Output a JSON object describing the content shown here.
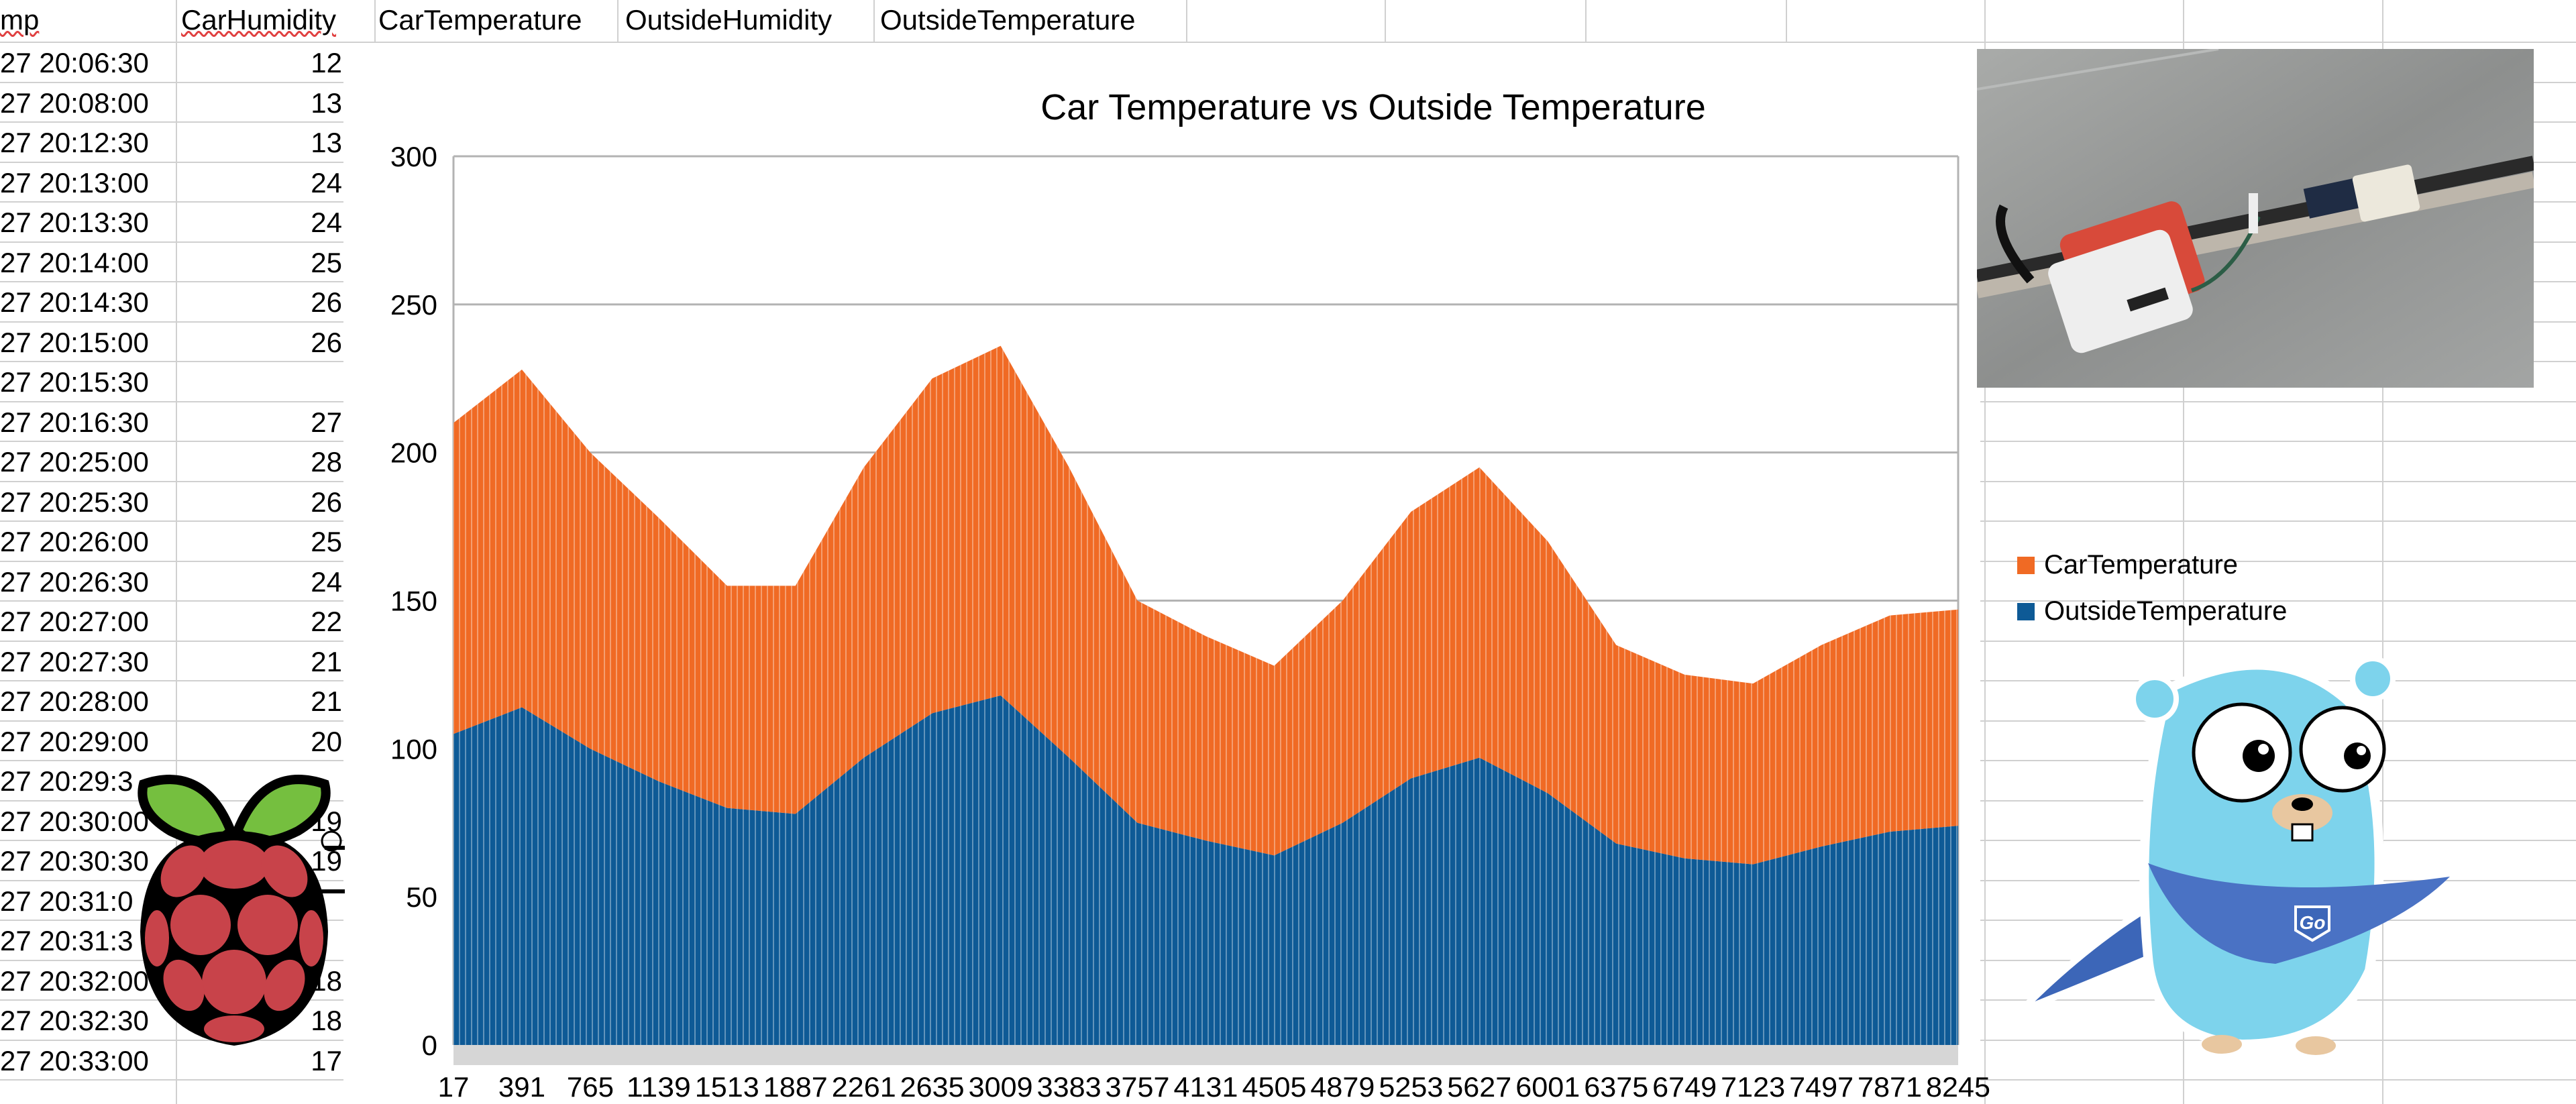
{
  "sheet": {
    "headers": [
      "mp",
      "CarHumidity",
      "CarTemperature",
      "OutsideHumidity",
      "OutsideTemperature"
    ],
    "rows": [
      {
        "time": "27 20:06:30",
        "car_humidity": "12"
      },
      {
        "time": "27 20:08:00",
        "car_humidity": "13"
      },
      {
        "time": "27 20:12:30",
        "car_humidity": "13"
      },
      {
        "time": "27 20:13:00",
        "car_humidity": "24"
      },
      {
        "time": "27 20:13:30",
        "car_humidity": "24"
      },
      {
        "time": "27 20:14:00",
        "car_humidity": "25"
      },
      {
        "time": "27 20:14:30",
        "car_humidity": "26"
      },
      {
        "time": "27 20:15:00",
        "car_humidity": "26"
      },
      {
        "time": "27 20:15:30",
        "car_humidity": ""
      },
      {
        "time": "27 20:16:30",
        "car_humidity": "27"
      },
      {
        "time": "27 20:25:00",
        "car_humidity": "28"
      },
      {
        "time": "27 20:25:30",
        "car_humidity": "26"
      },
      {
        "time": "27 20:26:00",
        "car_humidity": "25"
      },
      {
        "time": "27 20:26:30",
        "car_humidity": "24"
      },
      {
        "time": "27 20:27:00",
        "car_humidity": "22"
      },
      {
        "time": "27 20:27:30",
        "car_humidity": "21"
      },
      {
        "time": "27 20:28:00",
        "car_humidity": "21"
      },
      {
        "time": "27 20:29:00",
        "car_humidity": "20"
      },
      {
        "time": "27 20:29:3",
        "car_humidity": ""
      },
      {
        "time": "27 20:30:00",
        "car_humidity": "19"
      },
      {
        "time": "27 20:30:30",
        "car_humidity": "19"
      },
      {
        "time": "27 20:31:0",
        "car_humidity": ""
      },
      {
        "time": "27 20:31:3",
        "car_humidity": ""
      },
      {
        "time": "27 20:32:00",
        "car_humidity": "18"
      },
      {
        "time": "27 20:32:30",
        "car_humidity": "18"
      },
      {
        "time": "27 20:33:00",
        "car_humidity": "17"
      }
    ]
  },
  "chart_data": {
    "type": "area",
    "stacked": true,
    "title": "Car Temperature vs Outside Temperature",
    "xlabel": "",
    "ylabel": "",
    "x": [
      17,
      391,
      765,
      1139,
      1513,
      1887,
      2261,
      2635,
      3009,
      3383,
      3757,
      4131,
      4505,
      4879,
      5253,
      5627,
      6001,
      6375,
      6749,
      7123,
      7497,
      7871,
      8245
    ],
    "x_tick_labels": [
      "17",
      "391",
      "765",
      "1139",
      "1513",
      "1887",
      "2261",
      "2635",
      "3009",
      "3383",
      "3757",
      "4131",
      "4505",
      "4879",
      "5253",
      "5627",
      "6001",
      "6375",
      "6749",
      "7123",
      "7497",
      "7871",
      "8245"
    ],
    "ylim": [
      0,
      300
    ],
    "y_ticks": [
      0,
      50,
      100,
      150,
      200,
      250,
      300
    ],
    "grid": "horizontal",
    "legend_position": "right",
    "series": [
      {
        "name": "OutsideTemperature",
        "color": "#0e5a96",
        "values": [
          105,
          114,
          100,
          89,
          80,
          78,
          97,
          112,
          118,
          97,
          75,
          69,
          64,
          75,
          90,
          97,
          85,
          68,
          63,
          61,
          67,
          72,
          74
        ]
      },
      {
        "name": "CarTemperature",
        "color": "#f06a24",
        "values": [
          105,
          114,
          100,
          89,
          75,
          77,
          98,
          113,
          118,
          98,
          75,
          69,
          64,
          75,
          90,
          98,
          85,
          67,
          62,
          61,
          68,
          73,
          73
        ]
      }
    ]
  },
  "images": {
    "sensor_photo": "sensor-photo",
    "raspberry_logo": "raspberry-pi-logo",
    "go_gopher": "go-gopher-mascot",
    "gopher_badge_text": "Go"
  }
}
